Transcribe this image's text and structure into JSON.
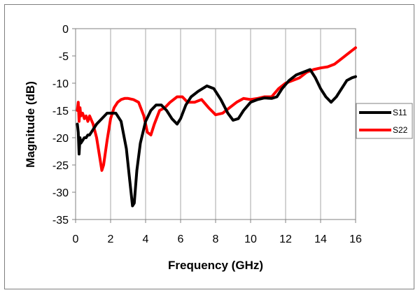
{
  "chart_data": {
    "type": "line",
    "xlabel": "Frequency (GHz)",
    "ylabel": "Magnitude (dB)",
    "xlim": [
      0,
      16
    ],
    "ylim": [
      -35,
      0
    ],
    "xticks": [
      0,
      2,
      4,
      6,
      8,
      10,
      12,
      14,
      16
    ],
    "yticks": [
      0,
      -5,
      -10,
      -15,
      -20,
      -25,
      -30,
      -35
    ],
    "grid": {
      "vertical": true,
      "horizontal": false
    },
    "legend_position": "right",
    "series": [
      {
        "name": "S11",
        "color": "#000000",
        "x": [
          0.1,
          0.15,
          0.2,
          0.25,
          0.3,
          0.4,
          0.5,
          0.6,
          0.7,
          0.8,
          1.0,
          1.2,
          1.5,
          1.8,
          2.0,
          2.3,
          2.6,
          2.9,
          3.1,
          3.25,
          3.35,
          3.5,
          3.7,
          4.0,
          4.3,
          4.6,
          4.9,
          5.2,
          5.5,
          5.8,
          6.0,
          6.3,
          6.6,
          7.0,
          7.5,
          7.9,
          8.3,
          8.7,
          9.0,
          9.3,
          9.6,
          10.0,
          10.4,
          10.8,
          11.2,
          11.5,
          11.8,
          12.2,
          12.6,
          13.0,
          13.4,
          13.7,
          14.0,
          14.3,
          14.6,
          14.9,
          15.2,
          15.5,
          15.8,
          16.0
        ],
        "y": [
          -17.5,
          -19,
          -23,
          -20,
          -21,
          -20.5,
          -20,
          -20,
          -19.5,
          -19.5,
          -18.5,
          -17.5,
          -16.5,
          -15.5,
          -15.5,
          -15.5,
          -17,
          -22,
          -28,
          -32.5,
          -32,
          -26,
          -21,
          -17,
          -15,
          -14,
          -14,
          -15,
          -16.5,
          -17.5,
          -16.5,
          -14,
          -12.5,
          -11.5,
          -10.5,
          -11,
          -13,
          -15.5,
          -16.8,
          -16.5,
          -15,
          -13.5,
          -13,
          -12.7,
          -12.8,
          -12.5,
          -11,
          -9.5,
          -8.5,
          -8,
          -7.5,
          -9,
          -11,
          -12.5,
          -13.5,
          -12.5,
          -11,
          -9.5,
          -9,
          -8.8
        ]
      },
      {
        "name": "S22",
        "color": "#ff0000",
        "x": [
          0.1,
          0.15,
          0.2,
          0.25,
          0.3,
          0.4,
          0.5,
          0.6,
          0.7,
          0.8,
          1.0,
          1.2,
          1.4,
          1.5,
          1.6,
          1.8,
          2.0,
          2.2,
          2.4,
          2.6,
          2.8,
          3.0,
          3.3,
          3.6,
          3.9,
          4.1,
          4.3,
          4.5,
          4.8,
          5.1,
          5.4,
          5.8,
          6.1,
          6.4,
          6.8,
          7.2,
          7.6,
          8.0,
          8.4,
          8.8,
          9.2,
          9.6,
          10.0,
          10.4,
          10.8,
          11.2,
          11.6,
          12.0,
          12.4,
          12.8,
          13.2,
          13.6,
          14.0,
          14.4,
          14.8,
          15.2,
          15.6,
          16.0
        ],
        "y": [
          -15,
          -13.5,
          -17,
          -14.5,
          -16,
          -15.5,
          -16.5,
          -16,
          -17,
          -16,
          -17.5,
          -20,
          -24,
          -26,
          -25,
          -20.5,
          -16.5,
          -14.5,
          -13.5,
          -13,
          -12.8,
          -12.8,
          -13,
          -13.5,
          -16,
          -19,
          -19.5,
          -17.5,
          -15,
          -14.5,
          -13.5,
          -12.5,
          -12.5,
          -13.5,
          -13.5,
          -13,
          -14.5,
          -15.8,
          -15.5,
          -14.5,
          -13.5,
          -12.8,
          -13,
          -12.8,
          -12.5,
          -12.5,
          -11,
          -10,
          -9.5,
          -9,
          -8,
          -7.5,
          -7.2,
          -7,
          -6.5,
          -5.5,
          -4.5,
          -3.5
        ]
      }
    ]
  }
}
